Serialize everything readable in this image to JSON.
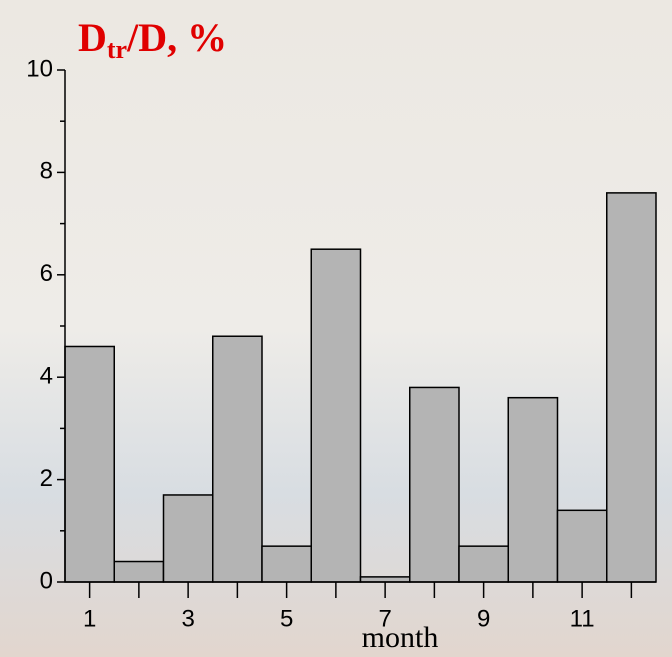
{
  "chart_data": {
    "type": "bar",
    "title": {
      "main": "D",
      "subscript": "tr",
      "rest": "/D, %"
    },
    "xlabel": "month",
    "categories": [
      "1",
      null,
      "3",
      null,
      "5",
      null,
      "7",
      null,
      "9",
      null,
      "11",
      null
    ],
    "values": [
      4.6,
      0.4,
      1.7,
      4.8,
      0.7,
      6.5,
      0.1,
      3.8,
      0.7,
      3.6,
      1.4,
      7.6
    ],
    "color": "#b4b4b4",
    "ylim": [
      0,
      10
    ],
    "yticks": [
      0,
      2,
      4,
      6,
      8,
      10
    ],
    "grid": false
  }
}
